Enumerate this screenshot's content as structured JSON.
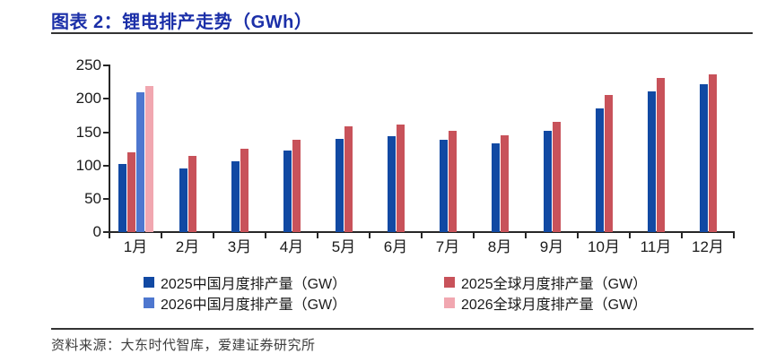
{
  "header": {
    "title": "图表 2：锂电排产走势（GWh）"
  },
  "colors": {
    "title_blue": "#1B2FA8",
    "axis": "#262626",
    "rule": "#333333",
    "cn_2025": "#1149A3",
    "global_2025": "#C8525A",
    "cn_2026": "#4E77CF",
    "global_2026": "#F1A7B0"
  },
  "chart_data": {
    "type": "bar",
    "title": "锂电排产走势（GWh）",
    "categories": [
      "1月",
      "2月",
      "3月",
      "4月",
      "5月",
      "6月",
      "7月",
      "8月",
      "9月",
      "10月",
      "11月",
      "12月"
    ],
    "series": [
      {
        "name": "2025中国月度排产量（GW）",
        "color": "#1149A3",
        "values": [
          103,
          96,
          107,
          122,
          140,
          144,
          138,
          133,
          152,
          186,
          211,
          222
        ]
      },
      {
        "name": "2025全球月度排产量（GW）",
        "color": "#C8525A",
        "values": [
          120,
          115,
          125,
          139,
          159,
          161,
          152,
          145,
          165,
          206,
          231,
          237
        ]
      },
      {
        "name": "2026中国月度排产量（GW）",
        "color": "#4E77CF",
        "values": [
          210,
          null,
          null,
          null,
          null,
          null,
          null,
          null,
          null,
          null,
          null,
          null
        ]
      },
      {
        "name": "2026全球月度排产量（GW）",
        "color": "#F1A7B0",
        "values": [
          219,
          null,
          null,
          null,
          null,
          null,
          null,
          null,
          null,
          null,
          null,
          null
        ]
      }
    ],
    "ylim": [
      0,
      250
    ],
    "yticks": [
      0,
      50,
      100,
      150,
      200,
      250
    ],
    "grid": false,
    "legend_position": "bottom"
  },
  "legend": {
    "items": [
      {
        "label": "2025中国月度排产量（GW）",
        "color": "#1149A3"
      },
      {
        "label": "2025全球月度排产量（GW）",
        "color": "#C8525A"
      },
      {
        "label": "2026中国月度排产量（GW）",
        "color": "#4E77CF"
      },
      {
        "label": "2026全球月度排产量（GW）",
        "color": "#F1A7B0"
      }
    ]
  },
  "source": {
    "label": "资料来源：大东时代智库，爱建证券研究所"
  }
}
